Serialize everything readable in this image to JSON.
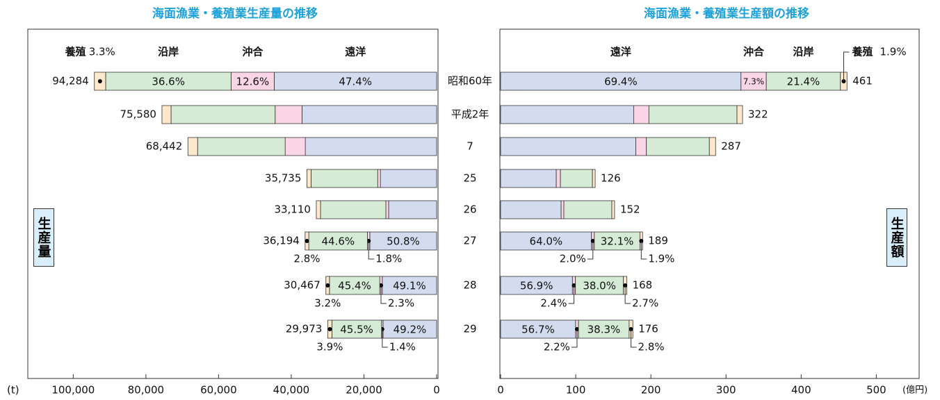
{
  "chart_data": [
    {
      "type": "bar",
      "title": "海面漁業・養殖業生産量の推移",
      "side_label": "生産量",
      "unit": "(t)",
      "categories": [
        "昭和60年",
        "平成2年",
        "7",
        "25",
        "26",
        "27",
        "28",
        "29"
      ],
      "totals": [
        94284,
        75580,
        68442,
        35735,
        33110,
        36194,
        30467,
        29973
      ],
      "total_labels": [
        "94,284",
        "75,580",
        "68,442",
        "35,735",
        "33,110",
        "36,194",
        "30,467",
        "29,973"
      ],
      "xlim": [
        0,
        112500
      ],
      "xreverse": true,
      "xticks": [
        {
          "value": 100000,
          "label": "100,000"
        },
        {
          "value": 80000,
          "label": "80,000"
        },
        {
          "value": 60000,
          "label": "60,000"
        },
        {
          "value": 40000,
          "label": "40,000"
        },
        {
          "value": 20000,
          "label": "20,000"
        },
        0
      ],
      "series": [
        {
          "name": "遠洋",
          "color": "#d3dcee",
          "values": [
            47.4,
            49.0,
            52.8,
            43.3,
            39.9,
            50.8,
            49.1,
            49.2
          ],
          "value_labels": [
            "47.4%",
            null,
            null,
            null,
            null,
            "50.8%",
            "49.1%",
            "49.2%"
          ]
        },
        {
          "name": "沖合",
          "color": "#f9d5e5",
          "values": [
            12.6,
            9.8,
            8.1,
            2.1,
            2.3,
            1.8,
            2.3,
            1.4
          ],
          "value_labels": [
            "12.6%",
            null,
            null,
            null,
            null,
            "1.8%",
            "2.3%",
            "1.4%"
          ]
        },
        {
          "name": "沿岸",
          "color": "#d5ebd5",
          "values": [
            36.6,
            37.9,
            35.2,
            51.3,
            54.3,
            44.6,
            45.4,
            45.5
          ],
          "value_labels": [
            "36.6%",
            null,
            null,
            null,
            null,
            "44.6%",
            "45.4%",
            "45.5%"
          ]
        },
        {
          "name": "養殖",
          "color": "#fde8cc",
          "values": [
            3.3,
            3.3,
            3.9,
            3.2,
            3.5,
            2.8,
            3.2,
            3.9
          ],
          "value_labels": [
            "3.3%",
            null,
            null,
            null,
            null,
            "2.8%",
            "3.2%",
            "3.9%"
          ]
        }
      ]
    },
    {
      "type": "bar",
      "title": "海面漁業・養殖業生産額の推移",
      "side_label": "生産額",
      "unit": "(億円)",
      "totals": [
        461,
        322,
        287,
        126,
        152,
        189,
        168,
        176
      ],
      "xlim": [
        0,
        557
      ],
      "xreverse": false,
      "xticks": [
        0,
        100,
        200,
        300,
        400,
        500
      ],
      "series": [
        {
          "name": "遠洋",
          "color": "#d3dcee",
          "values": [
            69.4,
            55.0,
            62.7,
            58.8,
            53.0,
            64.0,
            56.9,
            56.7
          ],
          "value_labels": [
            "69.4%",
            null,
            null,
            null,
            null,
            "64.0%",
            "56.9%",
            "56.7%"
          ]
        },
        {
          "name": "沖合",
          "color": "#f9d5e5",
          "values": [
            7.3,
            6.3,
            4.9,
            4.4,
            2.4,
            2.0,
            2.4,
            2.2
          ],
          "value_labels": [
            "7.3%",
            null,
            null,
            null,
            null,
            "2.0%",
            "2.4%",
            "2.2%"
          ]
        },
        {
          "name": "沿岸",
          "color": "#d5ebd5",
          "values": [
            21.4,
            36.4,
            29.2,
            33.8,
            42.0,
            32.1,
            38.0,
            38.3
          ],
          "value_labels": [
            "21.4%",
            null,
            null,
            null,
            null,
            "32.1%",
            "38.0%",
            "38.3%"
          ]
        },
        {
          "name": "養殖",
          "color": "#fde8cc",
          "values": [
            1.9,
            2.3,
            2.9,
            2.9,
            2.4,
            1.9,
            2.7,
            2.8
          ],
          "value_labels": [
            "1.9%",
            null,
            null,
            null,
            null,
            "1.9%",
            "2.7%",
            "2.8%"
          ]
        }
      ]
    }
  ]
}
